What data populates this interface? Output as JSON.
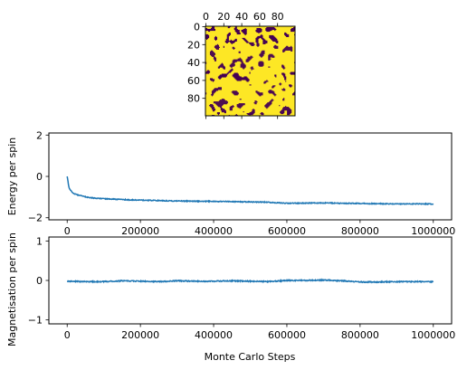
{
  "figure": {
    "colors": {
      "line": "#1f77b4",
      "spin_up": "#fde725",
      "spin_down": "#440154",
      "axis": "#000000"
    }
  },
  "chart_data": [
    {
      "type": "heatmap",
      "title": "",
      "grid_size": [
        100,
        100
      ],
      "colormap": "viridis",
      "values": "binary spin lattice (+1 yellow / -1 purple), mostly yellow domains with connected purple clusters",
      "x_ticks": [
        "0",
        "20",
        "40",
        "60",
        "80"
      ],
      "y_ticks": [
        "0",
        "20",
        "40",
        "60",
        "80"
      ],
      "xlim": [
        0,
        99
      ],
      "ylim": [
        99,
        0
      ],
      "x_tick_position": "top"
    },
    {
      "type": "line",
      "series": [
        {
          "x": [
            0,
            5000,
            10000,
            20000,
            40000,
            60000,
            80000,
            100000,
            150000,
            200000,
            250000,
            300000,
            350000,
            400000,
            450000,
            500000,
            550000,
            600000,
            650000,
            700000,
            750000,
            800000,
            850000,
            900000,
            950000,
            1000000
          ],
          "y": [
            0.0,
            -0.55,
            -0.7,
            -0.85,
            -0.95,
            -1.02,
            -1.06,
            -1.08,
            -1.12,
            -1.15,
            -1.17,
            -1.19,
            -1.2,
            -1.21,
            -1.22,
            -1.23,
            -1.25,
            -1.3,
            -1.29,
            -1.28,
            -1.3,
            -1.31,
            -1.32,
            -1.33,
            -1.33,
            -1.33
          ]
        }
      ],
      "ylabel": "Energy per spin",
      "xlabel": "",
      "xlim": [
        -50000,
        1050000
      ],
      "ylim": [
        -2.1,
        2.1
      ],
      "x_ticks": [
        "0",
        "200000",
        "400000",
        "600000",
        "800000",
        "1000000"
      ],
      "y_ticks": [
        "2",
        "0",
        "−2"
      ]
    },
    {
      "type": "line",
      "series": [
        {
          "x": [
            0,
            50000,
            100000,
            150000,
            200000,
            250000,
            300000,
            350000,
            400000,
            450000,
            500000,
            550000,
            600000,
            650000,
            700000,
            750000,
            800000,
            850000,
            900000,
            950000,
            1000000
          ],
          "y": [
            -0.02,
            -0.03,
            -0.03,
            -0.01,
            -0.02,
            -0.03,
            -0.01,
            -0.02,
            -0.02,
            -0.01,
            -0.02,
            -0.03,
            0.0,
            0.0,
            0.01,
            -0.01,
            -0.04,
            -0.04,
            -0.03,
            -0.03,
            -0.03
          ]
        }
      ],
      "ylabel": "Magnetisation per spin",
      "xlabel": "Monte Carlo Steps",
      "xlim": [
        -50000,
        1050000
      ],
      "ylim": [
        -1.1,
        1.1
      ],
      "x_ticks": [
        "0",
        "200000",
        "400000",
        "600000",
        "800000",
        "1000000"
      ],
      "y_ticks": [
        "1",
        "0",
        "−1"
      ]
    }
  ]
}
